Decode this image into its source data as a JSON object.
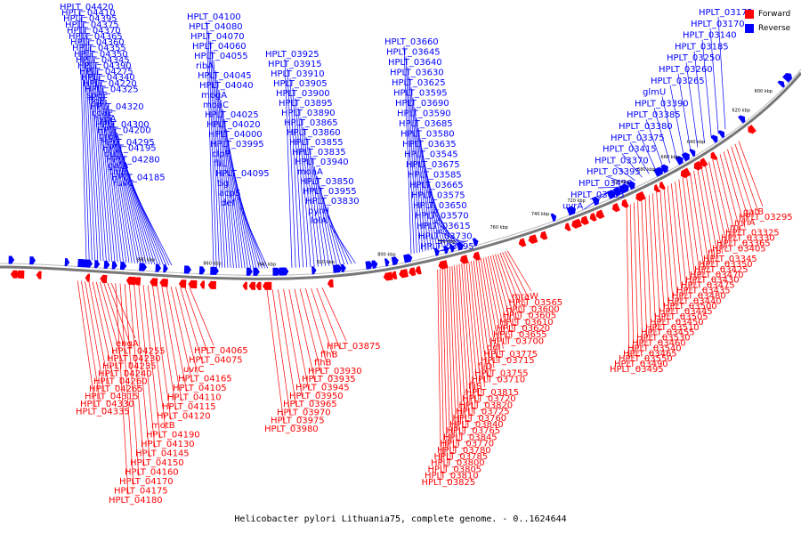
{
  "colors": {
    "forward": "#ff0000",
    "reverse": "#0000ff",
    "backbone": "#777777"
  },
  "legend": {
    "forward_label": "Forward",
    "reverse_label": "Reverse"
  },
  "caption": "Helicobacter pylori Lithuania75, complete genome. - 0..1624644",
  "ticks": [
    "600 kbp",
    "620 kbp",
    "640 kbp",
    "660 kbp",
    "680 kbp",
    "700 kbp",
    "720 kbp",
    "740 kbp",
    "760 kbp",
    "780 kbp",
    "800 kbp",
    "820 kbp",
    "840 kbp",
    "860 kbp",
    "880 kbp"
  ],
  "reverse_labels": [
    "HPLT_03175",
    "HPLT_03170",
    "HPLT_03140",
    "HPLT_03185",
    "HPLT_03250",
    "HPLT_03260",
    "HPLT_03265",
    "glmU",
    "HPLT_03390",
    "HPLT_03385",
    "HPLT_03380",
    "HPLT_03375",
    "HPLT_03415",
    "HPLT_03370",
    "HPLT_03395",
    "HPLT_03420",
    "HPLT_03485",
    "uvrA",
    "HPLT_03660",
    "HPLT_03645",
    "HPLT_03640",
    "HPLT_03630",
    "HPLT_03625",
    "HPLT_03595",
    "HPLT_03690",
    "HPLT_03590",
    "HPLT_03685",
    "HPLT_03580",
    "HPLT_03635",
    "HPLT_03545",
    "HPLT_03675",
    "HPLT_03585",
    "HPLT_03665",
    "HPLT_03575",
    "HPLT_03650",
    "HPLT_03570",
    "HPLT_03615",
    "HPLT_03730",
    "HPLT_03695",
    "HPLT_03925",
    "HPLT_03915",
    "HPLT_03910",
    "HPLT_03905",
    "HPLT_03900",
    "HPLT_03895",
    "HPLT_03890",
    "HPLT_03865",
    "HPLT_03860",
    "HPLT_03855",
    "HPLT_03835",
    "HPLT_03940",
    "moaA",
    "HPLT_03850",
    "HPLT_03955",
    "HPLT_03830",
    "pyrH",
    "lolA",
    "HPLT_04100",
    "HPLT_04080",
    "HPLT_04070",
    "HPLT_04060",
    "HPLT_04055",
    "ribA",
    "HPLT_04045",
    "HPLT_04040",
    "mogA",
    "moaC",
    "HPLT_04025",
    "HPLT_04020",
    "HPLT_04000",
    "HPLT_03995",
    "clpP",
    "fliL",
    "HPLT_04095",
    "tig",
    "acpS",
    "def",
    "HPLT_04420",
    "HPLT_04410",
    "HPLT_04395",
    "HPLT_04375",
    "HPLT_04370",
    "HPLT_04365",
    "HPLT_04360",
    "HPLT_04355",
    "HPLT_04350",
    "HPLT_04345",
    "HPLT_04390",
    "HPLT_04275",
    "HPLT_04340",
    "HPLT_04220",
    "HPLT_04325",
    "speE",
    "flgE",
    "HPLT_04320",
    "coaE",
    "hypA",
    "HPLT_04300",
    "HPLT_04200",
    "greA",
    "HPLT_04295",
    "HPLT_04195",
    "dut",
    "HPLT_04280",
    "gatA",
    "thiE",
    "HPLT_04185",
    "ruvC"
  ],
  "forward_labels": [
    "gatB",
    "HPLT_03295",
    "rnhA",
    "rnc",
    "HPLT_03325",
    "HPLT_03330",
    "HPLT_03365",
    "HPLT_03405",
    "fliP",
    "HPLT_03345",
    "HPLT_03350",
    "HPLT_03425",
    "HPLT_03470",
    "HPLT_03430",
    "HPLT_03475",
    "HPLT_03435",
    "HPLT_03480",
    "HPLT_03440",
    "HPLT_03500",
    "HPLT_03445",
    "HPLT_03505",
    "HPLT_03450",
    "HPLT_03510",
    "HPLT_03455",
    "HPLT_03530",
    "HPLT_03460",
    "HPLT_03540",
    "HPLT_03465",
    "HPLT_03550",
    "HPLT_03490",
    "HPLT_03495",
    "mraW",
    "HPLT_03565",
    "HPLT_03600",
    "HPLT_03605",
    "HPLT_03610",
    "HPLT_03620",
    "HPLT_03655",
    "HPLT_03700",
    "ddl",
    "HPLT_03775",
    "HPLT_03715",
    "fliD",
    "HPLT_03755",
    "HPLT_03710",
    "fliS",
    "HPLT_03815",
    "HPLT_03720",
    "HPLT_03820",
    "HPLT_03725",
    "HPLT_03760",
    "HPLT_03840",
    "HPLT_03765",
    "HPLT_03845",
    "HPLT_03770",
    "HPLT_03780",
    "HPLT_03785",
    "HPLT_03800",
    "HPLT_03805",
    "HPLT_03810",
    "HPLT_03825",
    "HPLT_03875",
    "flhB",
    "flhB",
    "HPLT_03930",
    "HPLT_03935",
    "HPLT_03945",
    "HPLT_03950",
    "HPLT_03965",
    "HPLT_03970",
    "HPLT_03975",
    "HPLT_03980",
    "HPLT_04065",
    "HPLT_04075",
    "uvrC",
    "HPLT_04165",
    "HPLT_04105",
    "HPLT_04110",
    "HPLT_04115",
    "HPLT_04120",
    "motB",
    "HPLT_04190",
    "HPLT_04130",
    "HPLT_04145",
    "HPLT_04150",
    "HPLT_04160",
    "HPLT_04170",
    "HPLT_04175",
    "HPLT_04180",
    "engA",
    "HPLT_04255",
    "HPLT_04230",
    "HPLT_04235",
    "HPLT_04240",
    "HPLT_04260",
    "HPLT_04265",
    "HPLT_04315",
    "HPLT_04330",
    "HPLT_04335"
  ]
}
